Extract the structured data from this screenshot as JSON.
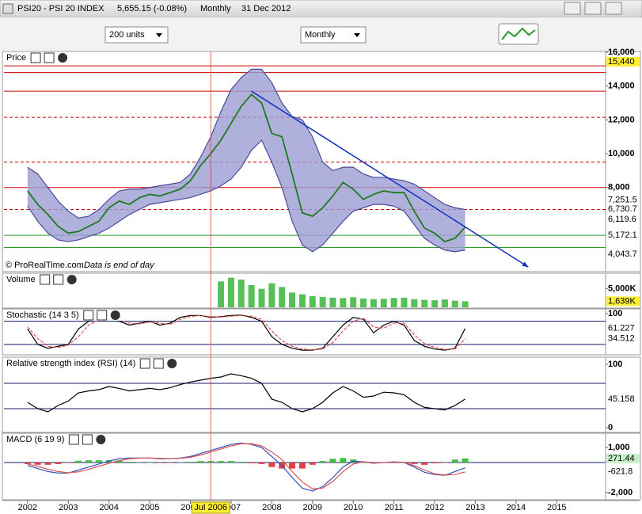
{
  "header": {
    "symbol": "PSI20 - PSI 20 INDEX",
    "price": "5,655.15 (-0.08%)",
    "period": "Monthly",
    "date": "31 Dec 2012"
  },
  "toolbar": {
    "units": "200 units",
    "period": "Monthly"
  },
  "cursor": {
    "value": 2006.5,
    "label": "Jul 2006"
  },
  "chart_data": [
    {
      "type": "line",
      "title": "Price",
      "annotations": [
        "© ProRealTime.com",
        "Data is end of day"
      ],
      "x": [
        2002,
        2002.25,
        2002.5,
        2002.75,
        2003,
        2003.25,
        2003.5,
        2003.75,
        2004,
        2004.25,
        2004.5,
        2004.75,
        2005,
        2005.25,
        2005.5,
        2005.75,
        2006,
        2006.25,
        2006.5,
        2006.75,
        2007,
        2007.25,
        2007.5,
        2007.75,
        2008,
        2008.25,
        2008.5,
        2008.75,
        2009,
        2009.25,
        2009.5,
        2009.75,
        2010,
        2010.25,
        2010.5,
        2010.75,
        2011,
        2011.25,
        2011.5,
        2011.75,
        2012,
        2012.25,
        2012.5,
        2012.75
      ],
      "xlim": [
        2001.42,
        2016.2
      ],
      "xticks": [
        2002,
        2003,
        2004,
        2005,
        2006,
        2007,
        2008,
        2009,
        2010,
        2011,
        2012,
        2013,
        2014,
        2015
      ],
      "ylim": [
        3070,
        16000
      ],
      "yticks": [
        {
          "value": 8000,
          "label": "8,000"
        },
        {
          "value": 10000,
          "label": "10,000"
        },
        {
          "value": 12000,
          "label": "12,000"
        },
        {
          "value": 14000,
          "label": "14,000"
        },
        {
          "value": 16000,
          "label": "16,000"
        }
      ],
      "series": [
        {
          "name": "PSI20",
          "color": "#1f7a1f",
          "values": [
            7800,
            7000,
            6400,
            5700,
            5300,
            5400,
            5700,
            6000,
            6800,
            7200,
            7000,
            7400,
            7600,
            7500,
            7700,
            7900,
            8400,
            9300,
            10000,
            10800,
            11800,
            12800,
            13500,
            13000,
            11200,
            11000,
            8800,
            6500,
            6300,
            6800,
            7500,
            8300,
            7900,
            7300,
            7600,
            7800,
            7700,
            7700,
            6600,
            5600,
            5300,
            4800,
            5000,
            5655
          ]
        },
        {
          "name": "Upper band",
          "color": "#4a4a9a",
          "values": [
            9200,
            8800,
            8000,
            7200,
            6600,
            6200,
            6300,
            6700,
            7300,
            7800,
            7900,
            7900,
            8000,
            8100,
            8200,
            8300,
            8800,
            9800,
            11000,
            12500,
            13800,
            14500,
            15000,
            15000,
            14200,
            13000,
            12200,
            12000,
            11000,
            9500,
            9000,
            9200,
            9200,
            8800,
            8600,
            8600,
            8500,
            8400,
            8200,
            7800,
            7400,
            7000,
            6800,
            6700
          ]
        },
        {
          "name": "Lower band",
          "color": "#4a4a9a",
          "values": [
            6900,
            6000,
            5300,
            4900,
            4800,
            4900,
            5100,
            5300,
            5600,
            6000,
            6400,
            6700,
            7000,
            7100,
            7200,
            7300,
            7400,
            7600,
            7800,
            8100,
            8500,
            9200,
            10200,
            10800,
            9500,
            8000,
            6000,
            4600,
            4200,
            4600,
            5300,
            6000,
            6600,
            6800,
            7000,
            7000,
            6900,
            6600,
            5800,
            5000,
            4600,
            4300,
            4200,
            4300
          ]
        }
      ],
      "band_color": "#9c9cd4",
      "levels": [
        {
          "value": 15200,
          "color": "#cc0000",
          "dash": false
        },
        {
          "value": 14800,
          "color": "#cc0000",
          "dash": false
        },
        {
          "value": 13700,
          "color": "#cc0000",
          "dash": false
        },
        {
          "value": 12150,
          "color": "#cc0000",
          "dash": true
        },
        {
          "value": 9500,
          "color": "#cc0000",
          "dash": true
        },
        {
          "value": 8000,
          "color": "#cc0000",
          "dash": false
        },
        {
          "value": 6700,
          "color": "#cc0000",
          "dash": true
        },
        {
          "value": 5172.1,
          "color": "#2a9a2a",
          "dash": false
        },
        {
          "value": 4450,
          "color": "#2a9a2a",
          "dash": false
        }
      ],
      "trendline": {
        "x": [
          2007.5,
          2014.3
        ],
        "y": [
          13700,
          3300
        ],
        "color": "#1030c0"
      },
      "markers": [
        {
          "value": 15440,
          "label": "15,440",
          "color": "#000000",
          "bg": "#ffee33"
        },
        {
          "value": 7251.5,
          "label": "7,251.5",
          "color": "#000000",
          "bg": "#ffffff"
        },
        {
          "value": 6730.7,
          "label": "6,730.7",
          "color": "#d020d0",
          "bg": "#ffffff"
        },
        {
          "value": 6119.6,
          "label": "6,119.6",
          "color": "#20b0d0",
          "bg": "#ffffff"
        },
        {
          "value": 5172.1,
          "label": "5,172.1",
          "color": "#000000",
          "bg": "#ffffff"
        },
        {
          "value": 4043.7,
          "label": "4,043.7",
          "color": "#000000",
          "bg": "#ffffff"
        }
      ]
    },
    {
      "type": "bar",
      "title": "Volume",
      "ylim": [
        0,
        9000
      ],
      "yticks": [
        {
          "value": 5000,
          "label": "5,000K"
        }
      ],
      "series": [
        {
          "name": "Volume",
          "color": "#55c055",
          "values": [
            null,
            null,
            null,
            null,
            null,
            null,
            null,
            null,
            null,
            null,
            null,
            null,
            null,
            null,
            null,
            null,
            null,
            null,
            null,
            7000,
            8000,
            7500,
            6000,
            5000,
            6500,
            5500,
            4000,
            3500,
            3000,
            2800,
            2600,
            2500,
            2700,
            2400,
            2200,
            2300,
            2500,
            2600,
            2200,
            2000,
            1900,
            2100,
            1800,
            1639
          ]
        }
      ],
      "markers": [
        {
          "value": 1639,
          "label": "1,639K",
          "color": "#000000",
          "bg": "#ffee33"
        }
      ]
    },
    {
      "type": "line",
      "title": "Stochastic (14 3 5)",
      "ylim": [
        -5,
        110
      ],
      "yticks": [
        100
      ],
      "levels": [
        {
          "value": 80,
          "color": "#1a1a6a",
          "dash": false
        },
        {
          "value": 20,
          "color": "#1a1a6a",
          "dash": false
        }
      ],
      "series": [
        {
          "name": "%K",
          "color": "#000000",
          "values": [
            60,
            20,
            10,
            15,
            20,
            60,
            80,
            85,
            90,
            80,
            70,
            75,
            80,
            70,
            75,
            90,
            95,
            95,
            90,
            92,
            95,
            96,
            90,
            80,
            40,
            20,
            10,
            5,
            5,
            10,
            40,
            70,
            90,
            85,
            50,
            70,
            80,
            70,
            30,
            15,
            8,
            5,
            10,
            61.227
          ]
        },
        {
          "name": "%D",
          "color": "#e05050",
          "dash": true,
          "values": [
            65,
            35,
            15,
            12,
            18,
            40,
            70,
            83,
            88,
            85,
            75,
            73,
            78,
            75,
            72,
            85,
            92,
            95,
            92,
            91,
            93,
            95,
            93,
            85,
            55,
            30,
            15,
            8,
            6,
            8,
            25,
            55,
            80,
            88,
            65,
            62,
            75,
            75,
            45,
            22,
            12,
            7,
            8,
            34.512
          ]
        }
      ],
      "markers": [
        {
          "value": 61.227,
          "label": "61.227",
          "color": "#000000",
          "bg": "#ffffff"
        },
        {
          "value": 34.512,
          "label": "34.512",
          "color": "#e05050",
          "bg": "#ffffff"
        }
      ]
    },
    {
      "type": "line",
      "title": "Relative strength index (RSI) (14)",
      "ylim": [
        -6.25,
        110
      ],
      "yticks": [
        0,
        100
      ],
      "levels": [
        {
          "value": 70,
          "color": "#1a1a6a",
          "dash": false
        },
        {
          "value": 30,
          "color": "#1a1a6a",
          "dash": false
        }
      ],
      "series": [
        {
          "name": "RSI",
          "color": "#000000",
          "values": [
            40,
            30,
            25,
            35,
            42,
            55,
            58,
            60,
            65,
            62,
            58,
            60,
            62,
            60,
            63,
            68,
            72,
            75,
            78,
            80,
            85,
            82,
            78,
            70,
            45,
            40,
            30,
            25,
            30,
            40,
            55,
            65,
            58,
            48,
            50,
            56,
            55,
            52,
            40,
            32,
            30,
            28,
            35,
            45.158
          ]
        }
      ],
      "markers": [
        {
          "value": 45.158,
          "label": "45.158",
          "color": "#000000",
          "bg": "#ffffff"
        }
      ]
    },
    {
      "type": "line",
      "title": "MACD (6 19 9)",
      "ylim": [
        -2421,
        1895
      ],
      "yticks": [
        {
          "value": 1000,
          "label": "1,000"
        },
        {
          "value": -2000,
          "label": "-2,000"
        }
      ],
      "levels": [
        {
          "value": 0,
          "color": "#1a1a6a",
          "dash": false
        }
      ],
      "series": [
        {
          "name": "Histogram",
          "kind": "bar",
          "color": "#40c040",
          "neg_color": "#e04040",
          "values": [
            -100,
            -150,
            -150,
            -100,
            -20,
            120,
            150,
            150,
            150,
            130,
            50,
            10,
            0,
            -30,
            -10,
            20,
            50,
            100,
            100,
            100,
            100,
            50,
            -50,
            -100,
            -300,
            -400,
            -400,
            -400,
            -150,
            100,
            250,
            300,
            200,
            0,
            -50,
            0,
            20,
            -20,
            -100,
            -150,
            -50,
            -20,
            200,
            271.44
          ]
        },
        {
          "name": "MACD",
          "color": "#3050c0",
          "values": [
            -200,
            -400,
            -600,
            -700,
            -700,
            -500,
            -300,
            -100,
            100,
            250,
            300,
            300,
            300,
            250,
            250,
            300,
            400,
            600,
            800,
            1000,
            1200,
            1300,
            1200,
            1000,
            400,
            -200,
            -1000,
            -1700,
            -1900,
            -1600,
            -1000,
            -300,
            100,
            50,
            -50,
            0,
            50,
            0,
            -300,
            -650,
            -800,
            -850,
            -600,
            -350.36
          ]
        },
        {
          "name": "Signal",
          "color": "#e05050",
          "values": [
            -100,
            -250,
            -450,
            -600,
            -680,
            -620,
            -450,
            -250,
            -50,
            120,
            250,
            290,
            300,
            280,
            260,
            280,
            350,
            500,
            700,
            900,
            1100,
            1250,
            1250,
            1100,
            700,
            200,
            -600,
            -1300,
            -1750,
            -1700,
            -1250,
            -600,
            -100,
            50,
            0,
            0,
            30,
            20,
            -200,
            -500,
            -750,
            -830,
            -800,
            -621.8
          ]
        }
      ],
      "markers": [
        {
          "value": 271.44,
          "label": "271.44",
          "color": "#000000",
          "bg": "#c8f0c8"
        },
        {
          "value": -621.8,
          "label": "-621.8",
          "color": "#e05050",
          "bg": "#ffffff"
        }
      ]
    }
  ]
}
